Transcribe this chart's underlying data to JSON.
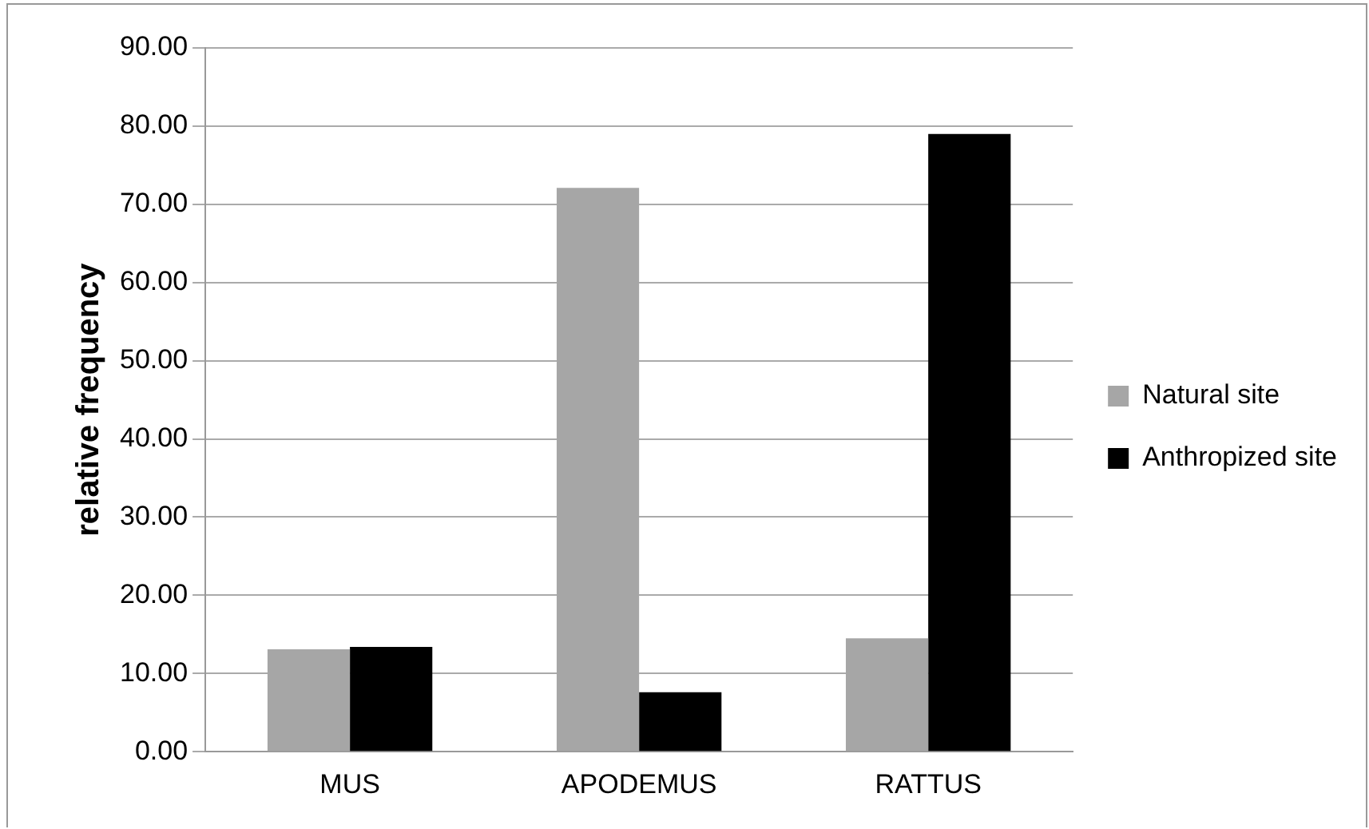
{
  "chart_data": {
    "type": "bar",
    "ylabel": "relative frequency",
    "categories": [
      "MUS",
      "APODEMUS",
      "RATTUS"
    ],
    "series": [
      {
        "name": "Natural site",
        "color": "#a6a6a6",
        "values": [
          13.1,
          72.1,
          14.5
        ]
      },
      {
        "name": "Anthropized site",
        "color": "#000000",
        "values": [
          13.4,
          7.6,
          79.0
        ]
      }
    ],
    "ylim": [
      0,
      90
    ],
    "yticks": [
      {
        "value": 0,
        "label": "0.00"
      },
      {
        "value": 10,
        "label": "10.00"
      },
      {
        "value": 20,
        "label": "20.00"
      },
      {
        "value": 30,
        "label": "30.00"
      },
      {
        "value": 40,
        "label": "40.00"
      },
      {
        "value": 50,
        "label": "50.00"
      },
      {
        "value": 60,
        "label": "60.00"
      },
      {
        "value": 70,
        "label": "70.00"
      },
      {
        "value": 80,
        "label": "80.00"
      },
      {
        "value": 90,
        "label": "90.00"
      }
    ],
    "grid": "y",
    "legend": "right"
  }
}
